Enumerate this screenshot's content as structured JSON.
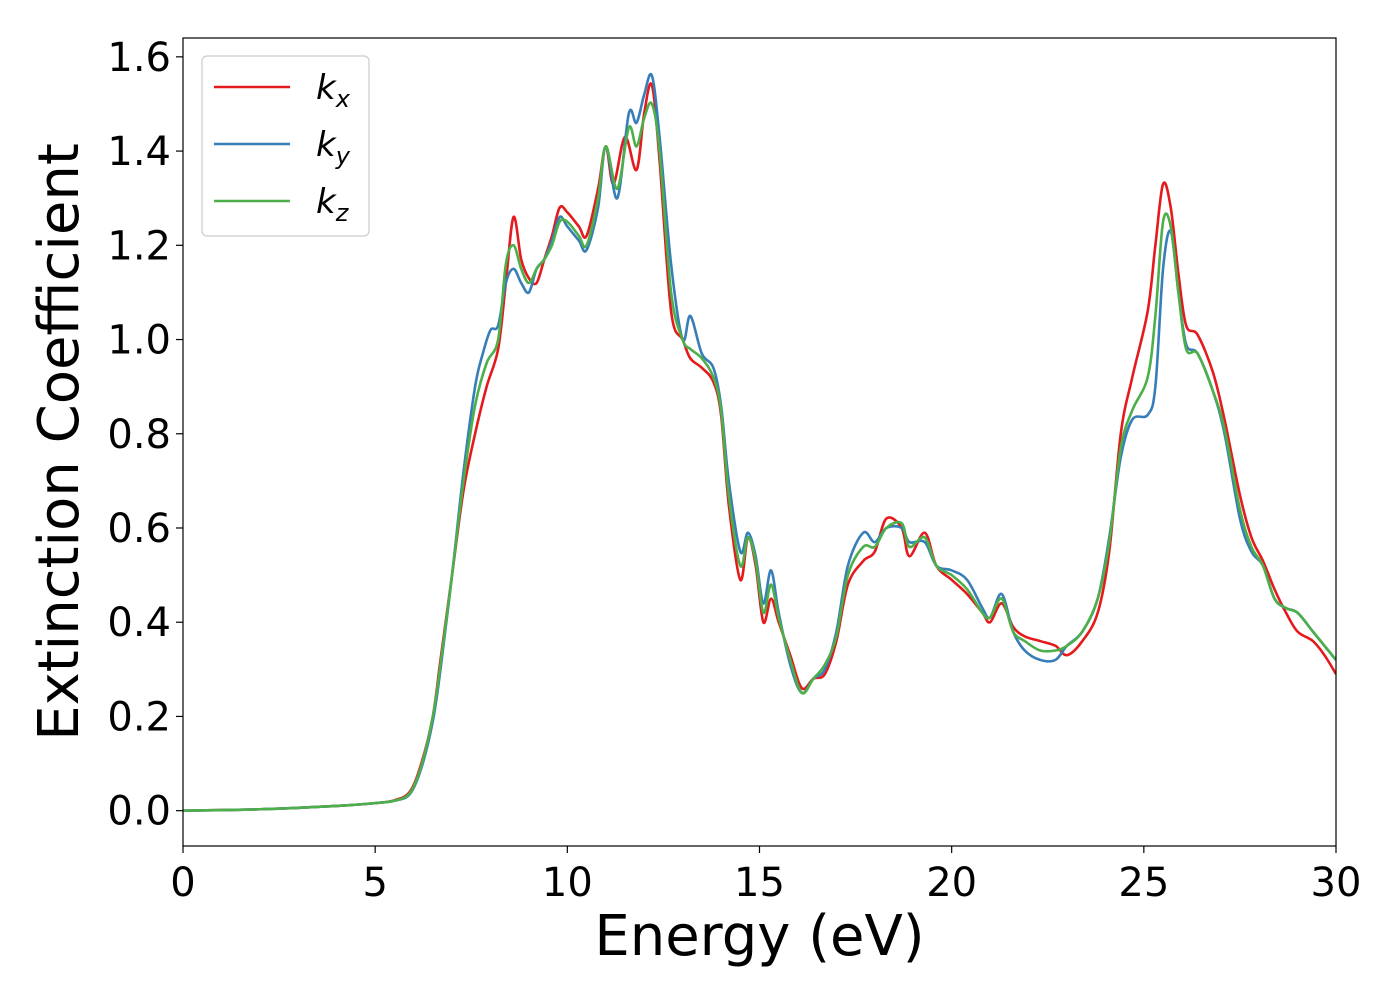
{
  "chart_data": {
    "type": "line",
    "xlabel": "Energy (eV)",
    "ylabel": "Extinction Coefficient",
    "xlim": [
      0,
      30
    ],
    "ylim": [
      -0.075,
      1.64
    ],
    "xticks": [
      "0",
      "5",
      "10",
      "15",
      "20",
      "25",
      "30"
    ],
    "yticks": [
      "0.0",
      "0.2",
      "0.4",
      "0.6",
      "0.8",
      "1.0",
      "1.2",
      "1.4",
      "1.6"
    ],
    "grid": false,
    "legend_position": "top-left",
    "series": [
      {
        "name": "k",
        "subscript": "x",
        "color": "#e41a1c",
        "points": [
          [
            0,
            0
          ],
          [
            2,
            0.003
          ],
          [
            4,
            0.01
          ],
          [
            5,
            0.016
          ],
          [
            5.5,
            0.022
          ],
          [
            5.9,
            0.04
          ],
          [
            6.2,
            0.1
          ],
          [
            6.5,
            0.2
          ],
          [
            6.7,
            0.32
          ],
          [
            7,
            0.5
          ],
          [
            7.3,
            0.68
          ],
          [
            7.6,
            0.8
          ],
          [
            7.9,
            0.9
          ],
          [
            8.2,
            0.98
          ],
          [
            8.4,
            1.12
          ],
          [
            8.6,
            1.26
          ],
          [
            8.8,
            1.17
          ],
          [
            9.0,
            1.13
          ],
          [
            9.2,
            1.12
          ],
          [
            9.4,
            1.17
          ],
          [
            9.6,
            1.22
          ],
          [
            9.8,
            1.28
          ],
          [
            10.0,
            1.27
          ],
          [
            10.3,
            1.24
          ],
          [
            10.5,
            1.22
          ],
          [
            10.8,
            1.32
          ],
          [
            11.0,
            1.41
          ],
          [
            11.2,
            1.33
          ],
          [
            11.5,
            1.43
          ],
          [
            11.8,
            1.36
          ],
          [
            12.0,
            1.48
          ],
          [
            12.2,
            1.54
          ],
          [
            12.4,
            1.38
          ],
          [
            12.7,
            1.06
          ],
          [
            13.0,
            1.0
          ],
          [
            13.2,
            0.96
          ],
          [
            13.5,
            0.94
          ],
          [
            13.8,
            0.91
          ],
          [
            14.0,
            0.84
          ],
          [
            14.2,
            0.65
          ],
          [
            14.5,
            0.49
          ],
          [
            14.7,
            0.58
          ],
          [
            14.9,
            0.52
          ],
          [
            15.1,
            0.4
          ],
          [
            15.3,
            0.45
          ],
          [
            15.5,
            0.4
          ],
          [
            15.8,
            0.33
          ],
          [
            16.1,
            0.26
          ],
          [
            16.4,
            0.28
          ],
          [
            16.7,
            0.29
          ],
          [
            17.0,
            0.36
          ],
          [
            17.3,
            0.48
          ],
          [
            17.7,
            0.53
          ],
          [
            18.0,
            0.55
          ],
          [
            18.3,
            0.62
          ],
          [
            18.7,
            0.6
          ],
          [
            18.9,
            0.54
          ],
          [
            19.3,
            0.59
          ],
          [
            19.6,
            0.52
          ],
          [
            20.0,
            0.49
          ],
          [
            20.4,
            0.46
          ],
          [
            20.8,
            0.42
          ],
          [
            21.0,
            0.4
          ],
          [
            21.3,
            0.44
          ],
          [
            21.6,
            0.39
          ],
          [
            21.9,
            0.37
          ],
          [
            22.3,
            0.36
          ],
          [
            22.7,
            0.35
          ],
          [
            23.0,
            0.33
          ],
          [
            23.4,
            0.36
          ],
          [
            23.8,
            0.42
          ],
          [
            24.1,
            0.55
          ],
          [
            24.4,
            0.8
          ],
          [
            24.7,
            0.92
          ],
          [
            25.1,
            1.06
          ],
          [
            25.3,
            1.2
          ],
          [
            25.5,
            1.33
          ],
          [
            25.7,
            1.28
          ],
          [
            25.9,
            1.14
          ],
          [
            26.1,
            1.03
          ],
          [
            26.4,
            1.01
          ],
          [
            26.8,
            0.93
          ],
          [
            27.1,
            0.83
          ],
          [
            27.5,
            0.67
          ],
          [
            27.8,
            0.58
          ],
          [
            28.1,
            0.53
          ],
          [
            28.4,
            0.47
          ],
          [
            28.7,
            0.42
          ],
          [
            29.0,
            0.38
          ],
          [
            29.4,
            0.36
          ],
          [
            29.7,
            0.33
          ],
          [
            30,
            0.29
          ]
        ]
      },
      {
        "name": "k",
        "subscript": "y",
        "color": "#377eb8",
        "points": [
          [
            0,
            0
          ],
          [
            2,
            0.003
          ],
          [
            4,
            0.01
          ],
          [
            5,
            0.016
          ],
          [
            5.5,
            0.021
          ],
          [
            5.9,
            0.035
          ],
          [
            6.2,
            0.09
          ],
          [
            6.5,
            0.19
          ],
          [
            6.7,
            0.3
          ],
          [
            7,
            0.5
          ],
          [
            7.3,
            0.72
          ],
          [
            7.6,
            0.9
          ],
          [
            7.8,
            0.97
          ],
          [
            8.0,
            1.02
          ],
          [
            8.2,
            1.03
          ],
          [
            8.4,
            1.12
          ],
          [
            8.6,
            1.15
          ],
          [
            8.8,
            1.12
          ],
          [
            9.0,
            1.1
          ],
          [
            9.2,
            1.15
          ],
          [
            9.4,
            1.17
          ],
          [
            9.6,
            1.21
          ],
          [
            9.8,
            1.26
          ],
          [
            10.0,
            1.24
          ],
          [
            10.3,
            1.21
          ],
          [
            10.5,
            1.19
          ],
          [
            10.8,
            1.28
          ],
          [
            11.0,
            1.41
          ],
          [
            11.3,
            1.3
          ],
          [
            11.6,
            1.48
          ],
          [
            11.8,
            1.46
          ],
          [
            12.0,
            1.52
          ],
          [
            12.2,
            1.56
          ],
          [
            12.4,
            1.43
          ],
          [
            12.7,
            1.16
          ],
          [
            13.0,
            1.0
          ],
          [
            13.2,
            1.05
          ],
          [
            13.5,
            0.97
          ],
          [
            13.8,
            0.94
          ],
          [
            14.0,
            0.86
          ],
          [
            14.2,
            0.7
          ],
          [
            14.5,
            0.55
          ],
          [
            14.7,
            0.59
          ],
          [
            14.9,
            0.54
          ],
          [
            15.1,
            0.44
          ],
          [
            15.3,
            0.51
          ],
          [
            15.5,
            0.42
          ],
          [
            15.8,
            0.31
          ],
          [
            16.1,
            0.25
          ],
          [
            16.4,
            0.28
          ],
          [
            16.7,
            0.3
          ],
          [
            17.0,
            0.38
          ],
          [
            17.3,
            0.52
          ],
          [
            17.7,
            0.59
          ],
          [
            18.0,
            0.57
          ],
          [
            18.3,
            0.6
          ],
          [
            18.7,
            0.6
          ],
          [
            18.9,
            0.57
          ],
          [
            19.3,
            0.57
          ],
          [
            19.6,
            0.52
          ],
          [
            20.0,
            0.51
          ],
          [
            20.4,
            0.49
          ],
          [
            20.8,
            0.43
          ],
          [
            21.0,
            0.41
          ],
          [
            21.3,
            0.46
          ],
          [
            21.6,
            0.38
          ],
          [
            21.9,
            0.34
          ],
          [
            22.3,
            0.32
          ],
          [
            22.7,
            0.32
          ],
          [
            23.0,
            0.35
          ],
          [
            23.4,
            0.38
          ],
          [
            23.8,
            0.45
          ],
          [
            24.1,
            0.58
          ],
          [
            24.4,
            0.75
          ],
          [
            24.7,
            0.83
          ],
          [
            25.1,
            0.84
          ],
          [
            25.3,
            0.9
          ],
          [
            25.5,
            1.15
          ],
          [
            25.7,
            1.23
          ],
          [
            25.9,
            1.1
          ],
          [
            26.1,
            0.99
          ],
          [
            26.4,
            0.97
          ],
          [
            26.8,
            0.89
          ],
          [
            27.1,
            0.8
          ],
          [
            27.5,
            0.62
          ],
          [
            27.8,
            0.55
          ],
          [
            28.1,
            0.52
          ],
          [
            28.4,
            0.45
          ],
          [
            28.7,
            0.43
          ],
          [
            29.0,
            0.42
          ],
          [
            29.4,
            0.38
          ],
          [
            29.7,
            0.35
          ],
          [
            30,
            0.32
          ]
        ]
      },
      {
        "name": "k",
        "subscript": "z",
        "color": "#4daf4a",
        "points": [
          [
            0,
            0
          ],
          [
            2,
            0.003
          ],
          [
            4,
            0.01
          ],
          [
            5,
            0.016
          ],
          [
            5.5,
            0.021
          ],
          [
            5.9,
            0.037
          ],
          [
            6.2,
            0.095
          ],
          [
            6.5,
            0.2
          ],
          [
            6.7,
            0.31
          ],
          [
            7,
            0.5
          ],
          [
            7.3,
            0.7
          ],
          [
            7.6,
            0.86
          ],
          [
            7.9,
            0.95
          ],
          [
            8.2,
            1.0
          ],
          [
            8.4,
            1.16
          ],
          [
            8.6,
            1.2
          ],
          [
            8.8,
            1.15
          ],
          [
            9.0,
            1.12
          ],
          [
            9.2,
            1.15
          ],
          [
            9.4,
            1.17
          ],
          [
            9.6,
            1.2
          ],
          [
            9.8,
            1.25
          ],
          [
            10.0,
            1.25
          ],
          [
            10.3,
            1.22
          ],
          [
            10.5,
            1.2
          ],
          [
            10.8,
            1.3
          ],
          [
            11.0,
            1.41
          ],
          [
            11.3,
            1.32
          ],
          [
            11.6,
            1.45
          ],
          [
            11.8,
            1.41
          ],
          [
            12.0,
            1.47
          ],
          [
            12.2,
            1.5
          ],
          [
            12.4,
            1.4
          ],
          [
            12.7,
            1.1
          ],
          [
            13.0,
            1.0
          ],
          [
            13.2,
            0.98
          ],
          [
            13.5,
            0.96
          ],
          [
            13.8,
            0.92
          ],
          [
            14.0,
            0.85
          ],
          [
            14.2,
            0.67
          ],
          [
            14.5,
            0.52
          ],
          [
            14.7,
            0.58
          ],
          [
            14.9,
            0.53
          ],
          [
            15.1,
            0.42
          ],
          [
            15.3,
            0.48
          ],
          [
            15.5,
            0.41
          ],
          [
            15.8,
            0.32
          ],
          [
            16.1,
            0.25
          ],
          [
            16.4,
            0.28
          ],
          [
            16.7,
            0.31
          ],
          [
            17.0,
            0.37
          ],
          [
            17.3,
            0.5
          ],
          [
            17.7,
            0.56
          ],
          [
            18.0,
            0.56
          ],
          [
            18.3,
            0.6
          ],
          [
            18.7,
            0.61
          ],
          [
            18.9,
            0.56
          ],
          [
            19.3,
            0.58
          ],
          [
            19.6,
            0.52
          ],
          [
            20.0,
            0.5
          ],
          [
            20.4,
            0.47
          ],
          [
            20.8,
            0.42
          ],
          [
            21.0,
            0.41
          ],
          [
            21.3,
            0.45
          ],
          [
            21.6,
            0.38
          ],
          [
            21.9,
            0.36
          ],
          [
            22.3,
            0.34
          ],
          [
            22.7,
            0.34
          ],
          [
            23.0,
            0.35
          ],
          [
            23.4,
            0.38
          ],
          [
            23.8,
            0.45
          ],
          [
            24.1,
            0.57
          ],
          [
            24.4,
            0.77
          ],
          [
            24.7,
            0.85
          ],
          [
            25.1,
            0.92
          ],
          [
            25.3,
            1.05
          ],
          [
            25.5,
            1.25
          ],
          [
            25.7,
            1.24
          ],
          [
            25.9,
            1.1
          ],
          [
            26.1,
            0.98
          ],
          [
            26.4,
            0.97
          ],
          [
            26.8,
            0.89
          ],
          [
            27.1,
            0.81
          ],
          [
            27.5,
            0.64
          ],
          [
            27.8,
            0.56
          ],
          [
            28.1,
            0.52
          ],
          [
            28.4,
            0.45
          ],
          [
            28.7,
            0.43
          ],
          [
            29.0,
            0.42
          ],
          [
            29.4,
            0.38
          ],
          [
            29.7,
            0.35
          ],
          [
            30,
            0.32
          ]
        ]
      }
    ]
  }
}
